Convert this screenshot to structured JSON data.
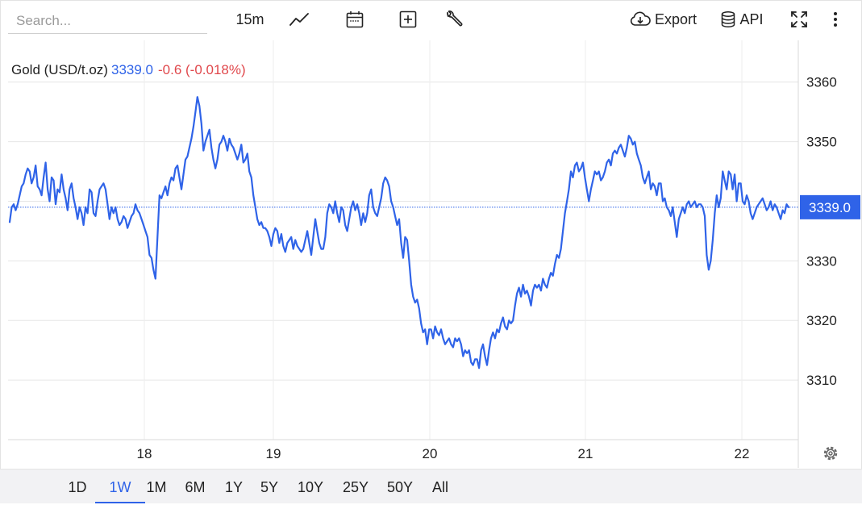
{
  "toolbar": {
    "search_placeholder": "Search...",
    "interval": "15m",
    "export_label": "Export",
    "api_label": "API",
    "icons": [
      "line-chart-icon",
      "calendar-icon",
      "add-icon",
      "wrench-icon",
      "cloud-download-icon",
      "database-icon",
      "fullscreen-icon",
      "more-vertical-icon"
    ]
  },
  "legend": {
    "name": "Gold (USD/t.oz)",
    "price": "3339.0",
    "change": "-0.6 (-0.018%)"
  },
  "ranges": {
    "items": [
      "1D",
      "1W",
      "1M",
      "6M",
      "1Y",
      "5Y",
      "10Y",
      "25Y",
      "50Y",
      "All"
    ],
    "active": "1W"
  },
  "colors": {
    "line": "#2f63e8",
    "negative": "#e0484c",
    "grid": "#e6e6e6"
  },
  "chart_data": {
    "type": "line",
    "series": [
      {
        "values": [
          3336.5,
          3339,
          3339.5,
          3338.5,
          3339.5,
          3341,
          3342.5,
          3343,
          3344.5,
          3345.5,
          3345,
          3343,
          3344,
          3346,
          3342.5,
          3342,
          3341,
          3344,
          3346.5,
          3342,
          3340,
          3344,
          3343.5,
          3339.5,
          3342,
          3341.5,
          3344.5,
          3342,
          3340.5,
          3338.5,
          3342,
          3343,
          3340.5,
          3339,
          3337,
          3339,
          3338,
          3336,
          3339,
          3338,
          3342,
          3341.5,
          3338,
          3337.5,
          3340,
          3342,
          3342.5,
          3343,
          3342,
          3339.5,
          3337,
          3339,
          3338,
          3339,
          3337,
          3336,
          3336.5,
          3337.5,
          3337,
          3335.5,
          3336.5,
          3337.5,
          3338,
          3339.5,
          3338.5,
          3338,
          3337,
          3336,
          3335,
          3334,
          3331,
          3330.5,
          3328.5,
          3327,
          3334,
          3341,
          3340.5,
          3341.5,
          3342.5,
          3341,
          3343,
          3344,
          3343.5,
          3345.5,
          3346,
          3344,
          3342,
          3344.5,
          3347,
          3347.5,
          3349,
          3350.5,
          3352.5,
          3355,
          3357.5,
          3356,
          3353,
          3348.5,
          3350,
          3351,
          3352,
          3349,
          3347,
          3345.5,
          3347,
          3349.5,
          3350,
          3351,
          3350,
          3348.5,
          3350.5,
          3349.5,
          3349,
          3348,
          3347,
          3348,
          3349.5,
          3346.5,
          3347,
          3348,
          3345,
          3344,
          3341,
          3339,
          3337,
          3336,
          3336.5,
          3335.5,
          3335.5,
          3335,
          3334,
          3332.5,
          3334.5,
          3335.5,
          3335,
          3333,
          3334.5,
          3332.5,
          3331.5,
          3333,
          3333.5,
          3334,
          3332,
          3333.5,
          3332.5,
          3332,
          3331.5,
          3332,
          3333.5,
          3335,
          3333,
          3331,
          3334,
          3337,
          3335,
          3333,
          3332,
          3332,
          3334,
          3338,
          3339.5,
          3339,
          3338,
          3340,
          3338,
          3336.5,
          3339,
          3338.5,
          3336,
          3335,
          3337,
          3339,
          3340,
          3338.5,
          3339.5,
          3338,
          3336,
          3338,
          3336.5,
          3338,
          3341,
          3342,
          3339,
          3338,
          3337.5,
          3339,
          3340.5,
          3343,
          3344,
          3343.5,
          3342.5,
          3340,
          3339,
          3337.5,
          3336,
          3337,
          3333,
          3330.5,
          3334,
          3333.5,
          3330,
          3326,
          3324,
          3323,
          3323.5,
          3322,
          3319.5,
          3318,
          3318.5,
          3316,
          3318.5,
          3318.5,
          3317,
          3319,
          3318,
          3317.5,
          3318.5,
          3317,
          3316,
          3316.5,
          3317,
          3316,
          3315.5,
          3317,
          3316.5,
          3317,
          3316,
          3314,
          3315,
          3314.5,
          3315,
          3313,
          3312.5,
          3313.5,
          3313.5,
          3312,
          3315,
          3316,
          3314,
          3312.5,
          3315,
          3317,
          3318,
          3317,
          3318.5,
          3318,
          3319.5,
          3320.5,
          3319,
          3318.5,
          3320,
          3319.5,
          3320,
          3322.5,
          3324.5,
          3325.5,
          3324,
          3326,
          3324.5,
          3325,
          3324,
          3322.5,
          3325,
          3326,
          3325.5,
          3326,
          3325,
          3327,
          3326,
          3325.5,
          3327,
          3328,
          3327.5,
          3329.5,
          3331,
          3330.5,
          3332,
          3335,
          3338,
          3340,
          3342,
          3345,
          3344,
          3346,
          3346.5,
          3345,
          3345.5,
          3346.5,
          3344,
          3342,
          3340,
          3342,
          3343.5,
          3345,
          3344.5,
          3345,
          3343.5,
          3344,
          3345,
          3346.5,
          3347,
          3346,
          3348,
          3348.5,
          3348,
          3349,
          3349.5,
          3348.5,
          3347.5,
          3349,
          3351,
          3350.5,
          3349.5,
          3350,
          3348,
          3347,
          3346,
          3344,
          3343,
          3344,
          3345,
          3342,
          3343,
          3342.5,
          3341,
          3343,
          3343,
          3340,
          3340.5,
          3339,
          3338.5,
          3337.5,
          3339,
          3336.5,
          3334,
          3337,
          3338,
          3339,
          3338,
          3339.5,
          3340,
          3339,
          3339.5,
          3340,
          3339,
          3339.5,
          3339.5,
          3339,
          3337.5,
          3331,
          3328.5,
          3330,
          3333.5,
          3338,
          3341,
          3339,
          3340.5,
          3345,
          3343.5,
          3342,
          3345,
          3344.5,
          3342,
          3344.5,
          3340,
          3343,
          3343,
          3340,
          3339.5,
          3341,
          3340,
          3338,
          3337,
          3338,
          3339,
          3339.5,
          3340,
          3340.5,
          3339.5,
          3338.5,
          3339,
          3340,
          3338.5,
          3339.5,
          3339,
          3338,
          3337,
          3338.5,
          3338,
          3339.5,
          3339
        ]
      }
    ],
    "x_ticks": [
      "18",
      "19",
      "20",
      "21",
      "22"
    ],
    "y_ticks": [
      3310,
      3320,
      3330,
      3340,
      3350,
      3360
    ],
    "ylim": [
      3300,
      3367
    ],
    "last_value": "3339.0",
    "grid": true
  }
}
